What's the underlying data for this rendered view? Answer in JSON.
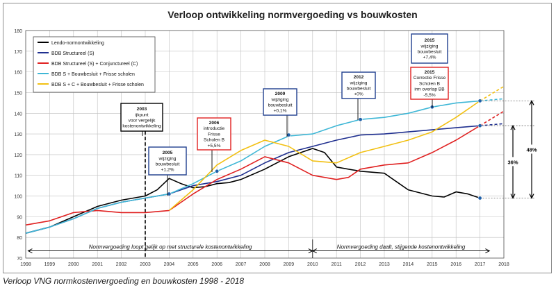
{
  "chart_data": {
    "type": "line",
    "title": "Verloop ontwikkeling normvergoeding vs bouwkosten",
    "xlabel": "",
    "ylabel": "",
    "xlim": [
      1998,
      2018
    ],
    "ylim": [
      70,
      180
    ],
    "x_ticks": [
      1998,
      1999,
      2000,
      2001,
      2002,
      2003,
      2004,
      2005,
      2006,
      2007,
      2008,
      2009,
      2010,
      2011,
      2012,
      2013,
      2014,
      2015,
      2016,
      2017,
      2018
    ],
    "y_ticks": [
      70,
      80,
      90,
      100,
      110,
      120,
      130,
      140,
      150,
      160,
      170,
      180
    ],
    "grid": true,
    "legend_position": "top-left",
    "series": [
      {
        "name": "Lendo-normontwikkeling",
        "color": "#000000",
        "style": "solid",
        "points": [
          [
            1998,
            82
          ],
          [
            1999,
            85
          ],
          [
            2000,
            90
          ],
          [
            2001,
            95
          ],
          [
            2002,
            98
          ],
          [
            2003,
            100
          ],
          [
            2003.5,
            103
          ],
          [
            2004,
            108.5
          ],
          [
            2004.5,
            106
          ],
          [
            2005,
            104
          ],
          [
            2005.5,
            104.5
          ],
          [
            2006,
            106
          ],
          [
            2006.5,
            106.5
          ],
          [
            2007,
            108
          ],
          [
            2008,
            113
          ],
          [
            2009,
            119
          ],
          [
            2010,
            123
          ],
          [
            2010.5,
            121
          ],
          [
            2011,
            114
          ],
          [
            2012,
            112
          ],
          [
            2013,
            111
          ],
          [
            2013.5,
            107
          ],
          [
            2014,
            103
          ],
          [
            2015,
            100
          ],
          [
            2015.5,
            99.5
          ],
          [
            2016,
            102
          ],
          [
            2016.5,
            101
          ],
          [
            2017,
            99
          ]
        ]
      },
      {
        "name": "BDB Structureel (S)",
        "color": "#1f2f8f",
        "style": "solid",
        "points": [
          [
            1998,
            82
          ],
          [
            1999,
            85
          ],
          [
            2000,
            89
          ],
          [
            2001,
            94
          ],
          [
            2002,
            97
          ],
          [
            2003,
            99
          ],
          [
            2004,
            101
          ],
          [
            2005,
            105
          ],
          [
            2006,
            107
          ],
          [
            2007,
            110
          ],
          [
            2008,
            116
          ],
          [
            2009,
            121
          ],
          [
            2010,
            124
          ],
          [
            2011,
            127
          ],
          [
            2012,
            129.5
          ],
          [
            2013,
            130
          ],
          [
            2014,
            131
          ],
          [
            2015,
            132
          ],
          [
            2016,
            133
          ],
          [
            2017,
            134
          ]
        ],
        "extension": [
          [
            2017,
            134
          ],
          [
            2018,
            135
          ]
        ]
      },
      {
        "name": "BDB Structureel (S) + Conjunctureel (C)",
        "color": "#e02020",
        "style": "solid",
        "points": [
          [
            1998,
            86
          ],
          [
            1999,
            88
          ],
          [
            2000,
            92
          ],
          [
            2001,
            93
          ],
          [
            2002,
            92
          ],
          [
            2003,
            92
          ],
          [
            2003.5,
            92.5
          ],
          [
            2004,
            93
          ],
          [
            2005,
            101
          ],
          [
            2006,
            108
          ],
          [
            2007,
            113
          ],
          [
            2008,
            119
          ],
          [
            2009,
            116
          ],
          [
            2010,
            110
          ],
          [
            2011,
            108
          ],
          [
            2011.5,
            109
          ],
          [
            2012,
            113
          ],
          [
            2013,
            115
          ],
          [
            2014,
            116
          ],
          [
            2015,
            121
          ],
          [
            2016,
            127
          ],
          [
            2017,
            134
          ]
        ],
        "extension": [
          [
            2017,
            134
          ],
          [
            2018,
            141
          ]
        ]
      },
      {
        "name": "BDB S + Bouwbesluit + Frisse scholen",
        "color": "#3fb7d6",
        "style": "solid",
        "points": [
          [
            1998,
            82
          ],
          [
            1999,
            85
          ],
          [
            2000,
            89
          ],
          [
            2001,
            94
          ],
          [
            2002,
            97
          ],
          [
            2003,
            99
          ],
          [
            2004,
            101
          ],
          [
            2005,
            106
          ],
          [
            2006,
            112
          ],
          [
            2007,
            117
          ],
          [
            2008,
            124
          ],
          [
            2009,
            129
          ],
          [
            2010,
            130
          ],
          [
            2011,
            134
          ],
          [
            2012,
            137
          ],
          [
            2013,
            138
          ],
          [
            2014,
            140
          ],
          [
            2015,
            143
          ],
          [
            2016,
            145
          ],
          [
            2017,
            146
          ]
        ],
        "extension": [
          [
            2017,
            146
          ],
          [
            2018,
            147
          ]
        ]
      },
      {
        "name": "BDB S + C + Bouwbesluit + Frisse scholen",
        "color": "#f2c012",
        "style": "solid",
        "points": [
          [
            2004,
            93
          ],
          [
            2005,
            103
          ],
          [
            2006,
            115
          ],
          [
            2007,
            122
          ],
          [
            2008,
            127
          ],
          [
            2009,
            124
          ],
          [
            2010,
            117
          ],
          [
            2011,
            116
          ],
          [
            2012,
            121
          ],
          [
            2013,
            124
          ],
          [
            2014,
            127
          ],
          [
            2015,
            131
          ],
          [
            2016,
            138
          ],
          [
            2017,
            146
          ]
        ],
        "extension": [
          [
            2017,
            146
          ],
          [
            2018,
            153
          ]
        ]
      }
    ],
    "markers": [
      {
        "x": 2004,
        "y": 101,
        "color": "#1f5fa8"
      },
      {
        "x": 2006,
        "y": 112,
        "color": "#1f5fa8"
      },
      {
        "x": 2009,
        "y": 129.5,
        "color": "#1f5fa8"
      },
      {
        "x": 2012,
        "y": 137,
        "color": "#1f5fa8"
      },
      {
        "x": 2015,
        "y": 143,
        "color": "#1f5fa8"
      },
      {
        "x": 2017,
        "y": 146,
        "color": "#1f5fa8"
      },
      {
        "x": 2017,
        "y": 134,
        "color": "#1f5fa8"
      },
      {
        "x": 2017,
        "y": 99,
        "color": "#1f5fa8"
      }
    ],
    "annotations": [
      {
        "id": "2003",
        "lines": [
          "2003",
          "ijkpunt",
          "voor vergelijk",
          "kostenontwikkeling"
        ],
        "border": "#000000"
      },
      {
        "id": "2005",
        "lines": [
          "2005",
          "wijziging",
          "bouwbesluit",
          "+1,2%"
        ],
        "border": "#1f3f8f"
      },
      {
        "id": "2006",
        "lines": [
          "2006",
          "introductie",
          "Frisse",
          "Scholen B",
          "+5,5%"
        ],
        "border": "#e02020"
      },
      {
        "id": "2009",
        "lines": [
          "2009",
          "wijziging",
          "bouwbesluit",
          "+0,1%"
        ],
        "border": "#1f3f8f"
      },
      {
        "id": "2012",
        "lines": [
          "2012",
          "wijziging",
          "bouwbesluit",
          "+0%"
        ],
        "border": "#1f3f8f"
      },
      {
        "id": "2015a",
        "lines": [
          "2015",
          "wijziging",
          "bouwbesluit",
          "+7,4%"
        ],
        "border": "#1f3f8f"
      },
      {
        "id": "2015b",
        "lines": [
          "2015",
          "Correctie Frisse",
          "Scholen B",
          "irm overlap BB",
          "-5,5%"
        ],
        "border": "#e02020"
      }
    ],
    "percent_labels": {
      "inner": "36%",
      "outer": "48%"
    },
    "phase_labels": {
      "left": "Normvergoeding loopt gelijk op met structurele kostenontwikkeling",
      "right": "Normvergoeding daalt, stijgende kostenontwikkeling"
    },
    "reference_line_x": 2003
  },
  "caption": "Verloop VNG normkostenvergoeding en bouwkosten 1998 - 2018"
}
